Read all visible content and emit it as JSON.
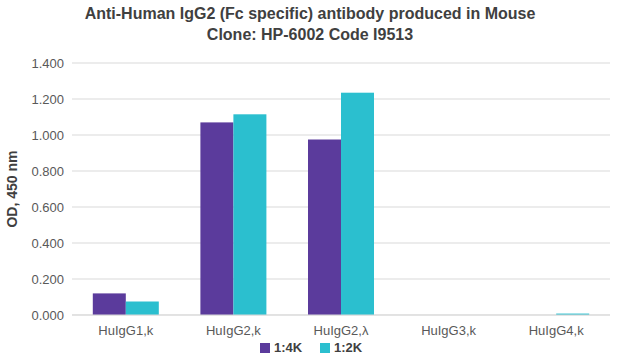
{
  "chart_data": {
    "type": "bar",
    "title": "Anti-Human IgG2 (Fc specific) antibody produced in Mouse",
    "subtitle": "Clone: HP-6002  Code I9513",
    "y_label": "OD, 450 nm",
    "categories": [
      "HuIgG1,k",
      "HuIgG2,k",
      "HuIgG2,λ",
      "HuIgG3,k",
      "HuIgG4,k"
    ],
    "series": [
      {
        "name": "1:4K",
        "color": "#5b3b9c",
        "values": [
          0.12,
          1.07,
          0.975,
          0.0,
          0.0
        ]
      },
      {
        "name": "1:2K",
        "color": "#2bbfcf",
        "values": [
          0.075,
          1.115,
          1.235,
          0.0,
          0.008
        ]
      }
    ],
    "ylim": [
      0,
      1.4
    ],
    "yticks": [
      {
        "value": 0,
        "label": "0.000"
      },
      {
        "value": 0.2,
        "label": "0.200"
      },
      {
        "value": 0.4,
        "label": "0.400"
      },
      {
        "value": 0.6,
        "label": "0.600"
      },
      {
        "value": 0.8,
        "label": "0.800"
      },
      {
        "value": 1.0,
        "label": "1.000"
      },
      {
        "value": 1.2,
        "label": "1.200"
      },
      {
        "value": 1.4,
        "label": "1.400"
      }
    ],
    "grid": true,
    "legend": "bottom"
  }
}
